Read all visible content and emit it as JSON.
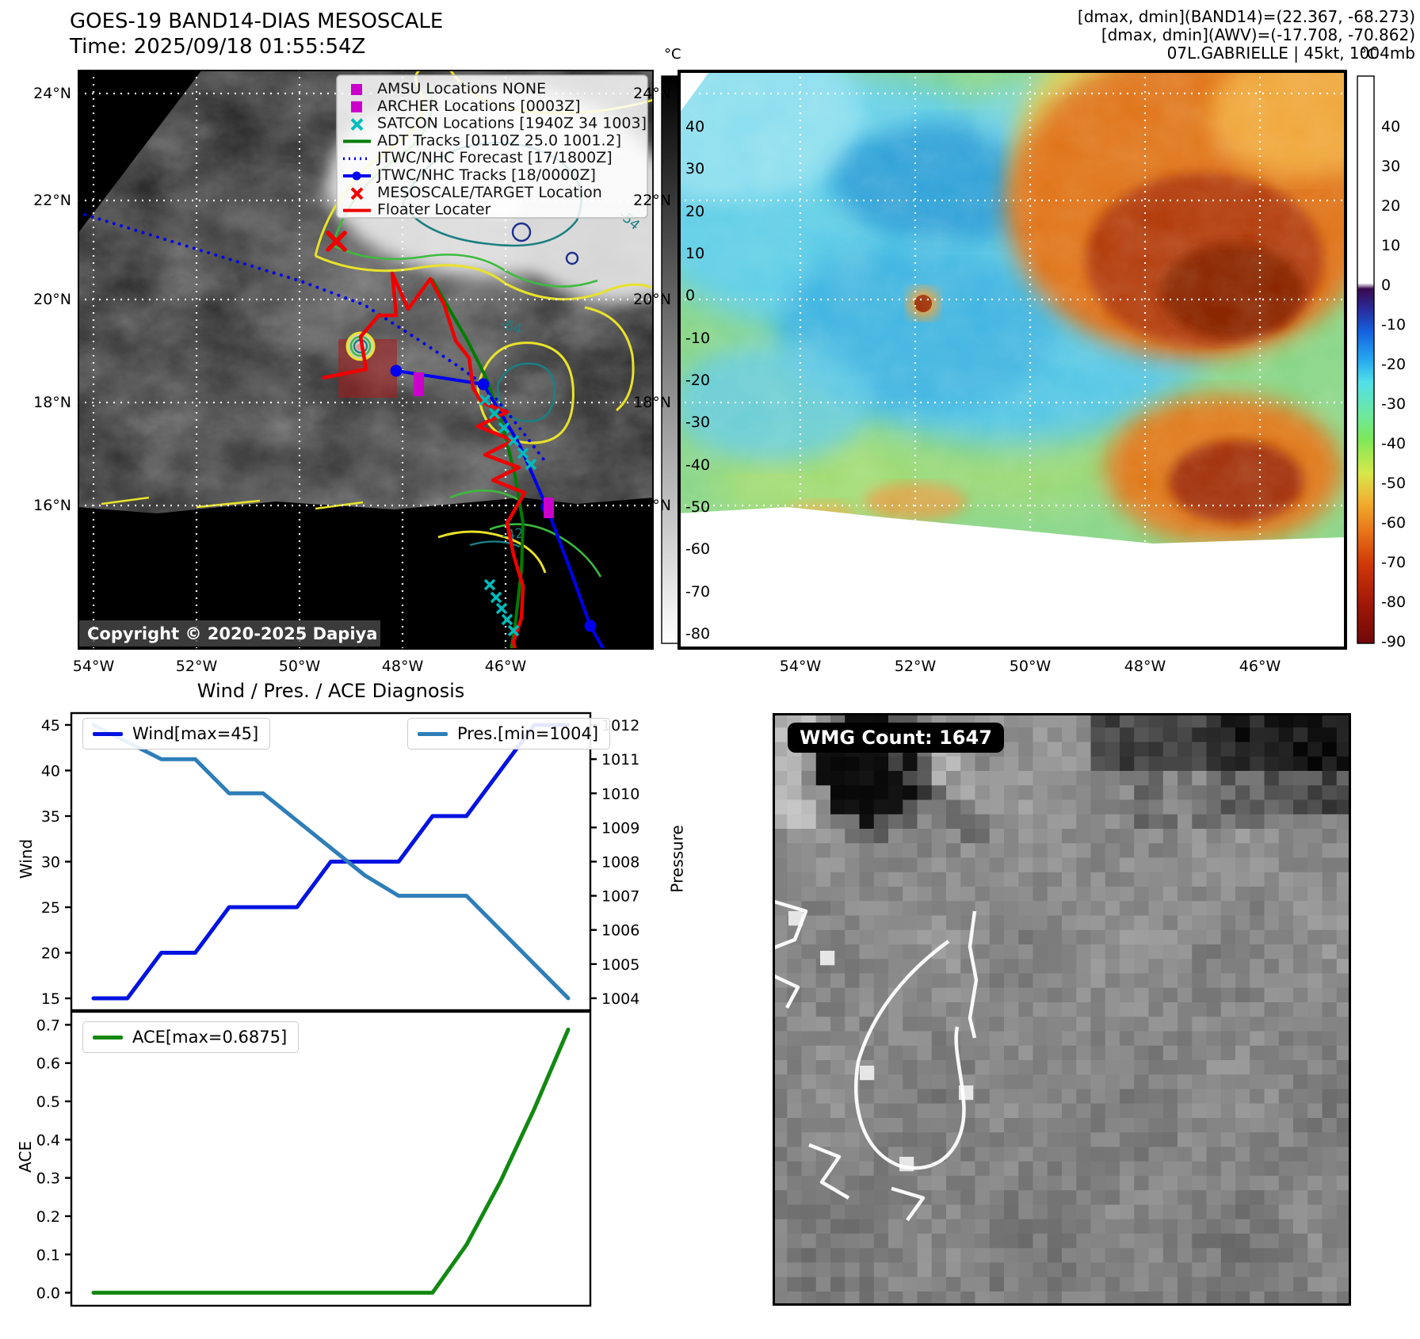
{
  "band14_panel": {
    "title": "GOES-19 BAND14-DIAS MESOSCALE",
    "time_line": "Time: 2025/09/18 01:55:54Z",
    "copyright": "Copyright © 2020-2025 Dapiya",
    "colorbar_unit": "°C",
    "colorbar_ticks": [
      40,
      30,
      20,
      10,
      0,
      -10,
      -20,
      -30,
      -40,
      -50,
      -60,
      -70,
      -80
    ],
    "lat_labels": [
      "24°N",
      "22°N",
      "20°N",
      "18°N",
      "16°N"
    ],
    "lon_labels": [
      "54°W",
      "52°W",
      "50°W",
      "48°W",
      "46°W"
    ],
    "legend": [
      {
        "label": "AMSU Locations NONE",
        "marker": "square",
        "color": "#cc00cc"
      },
      {
        "label": "ARCHER Locations [0003Z]",
        "marker": "square",
        "color": "#cc00cc"
      },
      {
        "label": "SATCON Locations [1940Z 34 1003]",
        "marker": "x",
        "color": "#00bcbc"
      },
      {
        "label": "ADT Tracks [0110Z 25.0 1001.2]",
        "marker": "line",
        "color": "#007d00"
      },
      {
        "label": "JTWC/NHC Forecast [17/1800Z]",
        "marker": "dotted",
        "color": "#0000ee"
      },
      {
        "label": "JTWC/NHC Tracks [18/0000Z]",
        "marker": "line-dot",
        "color": "#0000ee"
      },
      {
        "label": "MESOSCALE/TARGET Location",
        "marker": "x",
        "color": "#ee0000"
      },
      {
        "label": "Floater Locater",
        "marker": "line",
        "color": "#ee0000"
      }
    ],
    "contour_labels": {
      "c64": "-64",
      "c54": "-54",
      "c42": "-42"
    }
  },
  "awv_panel": {
    "header_lines": [
      "[dmax, dmin](BAND14)=(22.367, -68.273)",
      "[dmax, dmin](AWV)=(-17.708, -70.862)",
      "07L.GABRIELLE | 45kt, 1004mb"
    ],
    "colorbar_unit": "°C",
    "colorbar_ticks": [
      40,
      30,
      20,
      10,
      0,
      -10,
      -20,
      -30,
      -40,
      -50,
      -60,
      -70,
      -80,
      -90
    ],
    "lat_labels": [
      "24°N",
      "22°N",
      "20°N",
      "18°N",
      "16°N"
    ],
    "lon_labels": [
      "54°W",
      "52°W",
      "50°W",
      "48°W",
      "46°W"
    ]
  },
  "wmg_panel": {
    "count_label": "WMG Count: 1647"
  },
  "chart_data": [
    {
      "type": "line",
      "title": "Wind / Pres. / ACE Diagnosis",
      "x": [
        0,
        1,
        2,
        3,
        4,
        5,
        6,
        7,
        8,
        9,
        10,
        11,
        12,
        13,
        14
      ],
      "x_axis_note": "time steps, no tick labels shown",
      "series": [
        {
          "name": "Wind[max=45]",
          "axis": "left",
          "color": "#0013e0",
          "values": [
            15,
            15,
            20,
            20,
            25,
            25,
            25,
            30,
            30,
            30,
            35,
            35,
            40,
            45,
            45
          ]
        },
        {
          "name": "Pres.[min=1004]",
          "axis": "right",
          "color": "#2e7eb8",
          "values": [
            1012,
            1011.5,
            1011,
            1011,
            1010,
            1010,
            1009.2,
            1008.4,
            1007.6,
            1007,
            1007,
            1007,
            1006,
            1005,
            1004
          ]
        }
      ],
      "ylabel_left": "Wind",
      "yticks_left": [
        15,
        20,
        25,
        30,
        35,
        40,
        45
      ],
      "ylim_left": [
        13.7,
        46.3
      ],
      "ylabel_right": "Pressure",
      "yticks_right": [
        1004,
        1005,
        1006,
        1007,
        1008,
        1009,
        1010,
        1011,
        1012
      ],
      "ylim_right": [
        1003.65,
        1012.35
      ],
      "grid": false,
      "legend_position": "top-left and top-right"
    },
    {
      "type": "line",
      "x": [
        0,
        1,
        2,
        3,
        4,
        5,
        6,
        7,
        8,
        9,
        10,
        11,
        12,
        13,
        14
      ],
      "series": [
        {
          "name": "ACE[max=0.6875]",
          "axis": "left",
          "color": "#128912",
          "values": [
            0,
            0,
            0,
            0,
            0,
            0,
            0,
            0,
            0,
            0,
            0,
            0.125,
            0.29,
            0.48,
            0.6875
          ]
        }
      ],
      "ylabel_left": "ACE",
      "yticks_left": [
        0.0,
        0.1,
        0.2,
        0.3,
        0.4,
        0.5,
        0.6,
        0.7
      ],
      "ylim_left": [
        -0.034,
        0.734
      ],
      "tick_format_left": "1dp",
      "grid": false,
      "legend_position": "top-left"
    }
  ]
}
